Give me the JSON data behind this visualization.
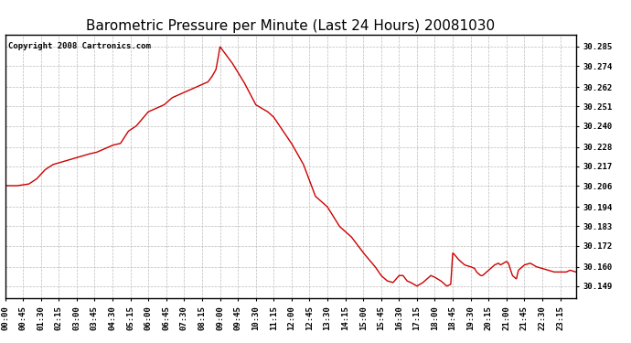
{
  "title": "Barometric Pressure per Minute (Last 24 Hours) 20081030",
  "copyright": "Copyright 2008 Cartronics.com",
  "line_color": "#cc0000",
  "bg_color": "#ffffff",
  "plot_bg_color": "#ffffff",
  "grid_color": "#bbbbbb",
  "yticks": [
    30.149,
    30.16,
    30.172,
    30.183,
    30.194,
    30.206,
    30.217,
    30.228,
    30.24,
    30.251,
    30.262,
    30.274,
    30.285
  ],
  "ylim": [
    30.142,
    30.292
  ],
  "xtick_labels": [
    "00:00",
    "00:45",
    "01:30",
    "02:15",
    "03:00",
    "03:45",
    "04:30",
    "05:15",
    "06:00",
    "06:45",
    "07:30",
    "08:15",
    "09:00",
    "09:45",
    "10:30",
    "11:15",
    "12:00",
    "12:45",
    "13:30",
    "14:15",
    "15:00",
    "15:45",
    "16:30",
    "17:15",
    "18:00",
    "18:45",
    "19:30",
    "20:15",
    "21:00",
    "21:45",
    "22:30",
    "23:15"
  ],
  "x_values": [
    0,
    45,
    90,
    135,
    180,
    225,
    270,
    315,
    360,
    405,
    450,
    495,
    540,
    585,
    630,
    675,
    720,
    765,
    810,
    855,
    900,
    945,
    990,
    1035,
    1080,
    1125,
    1170,
    1215,
    1260,
    1305,
    1350,
    1395
  ],
  "title_fontsize": 11,
  "tick_fontsize": 6.5,
  "copyright_fontsize": 6.5,
  "breakpoints_t": [
    0,
    30,
    60,
    80,
    100,
    120,
    150,
    180,
    210,
    230,
    240,
    260,
    270,
    290,
    310,
    330,
    360,
    380,
    400,
    420,
    440,
    460,
    480,
    490,
    510,
    520,
    530,
    535,
    540,
    550,
    570,
    600,
    630,
    660,
    675,
    690,
    720,
    750,
    780,
    810,
    840,
    870,
    900,
    930,
    945,
    960,
    975,
    990,
    1000,
    1010,
    1020,
    1035,
    1050,
    1060,
    1070,
    1080,
    1095,
    1100,
    1110,
    1120,
    1125,
    1140,
    1155,
    1170,
    1180,
    1185,
    1195,
    1200,
    1215,
    1230,
    1240,
    1245,
    1260,
    1265,
    1275,
    1285,
    1290,
    1305,
    1320,
    1335,
    1350,
    1365,
    1380,
    1395,
    1410,
    1420,
    1435
  ],
  "breakpoints_p": [
    30.206,
    30.206,
    30.207,
    30.21,
    30.215,
    30.218,
    30.22,
    30.222,
    30.224,
    30.225,
    30.226,
    30.228,
    30.229,
    30.23,
    30.237,
    30.24,
    30.248,
    30.25,
    30.252,
    30.256,
    30.258,
    30.26,
    30.262,
    30.263,
    30.265,
    30.268,
    30.272,
    30.278,
    30.285,
    30.282,
    30.276,
    30.265,
    30.252,
    30.248,
    30.245,
    30.24,
    30.23,
    30.218,
    30.2,
    30.194,
    30.183,
    30.177,
    30.168,
    30.16,
    30.155,
    30.152,
    30.151,
    30.155,
    30.155,
    30.152,
    30.151,
    30.149,
    30.151,
    30.153,
    30.155,
    30.154,
    30.152,
    30.151,
    30.149,
    30.15,
    30.168,
    30.164,
    30.161,
    30.16,
    30.159,
    30.157,
    30.155,
    30.155,
    30.158,
    30.161,
    30.162,
    30.161,
    30.163,
    30.162,
    30.155,
    30.153,
    30.158,
    30.161,
    30.162,
    30.16,
    30.159,
    30.158,
    30.157,
    30.157,
    30.157,
    30.158,
    30.157
  ]
}
